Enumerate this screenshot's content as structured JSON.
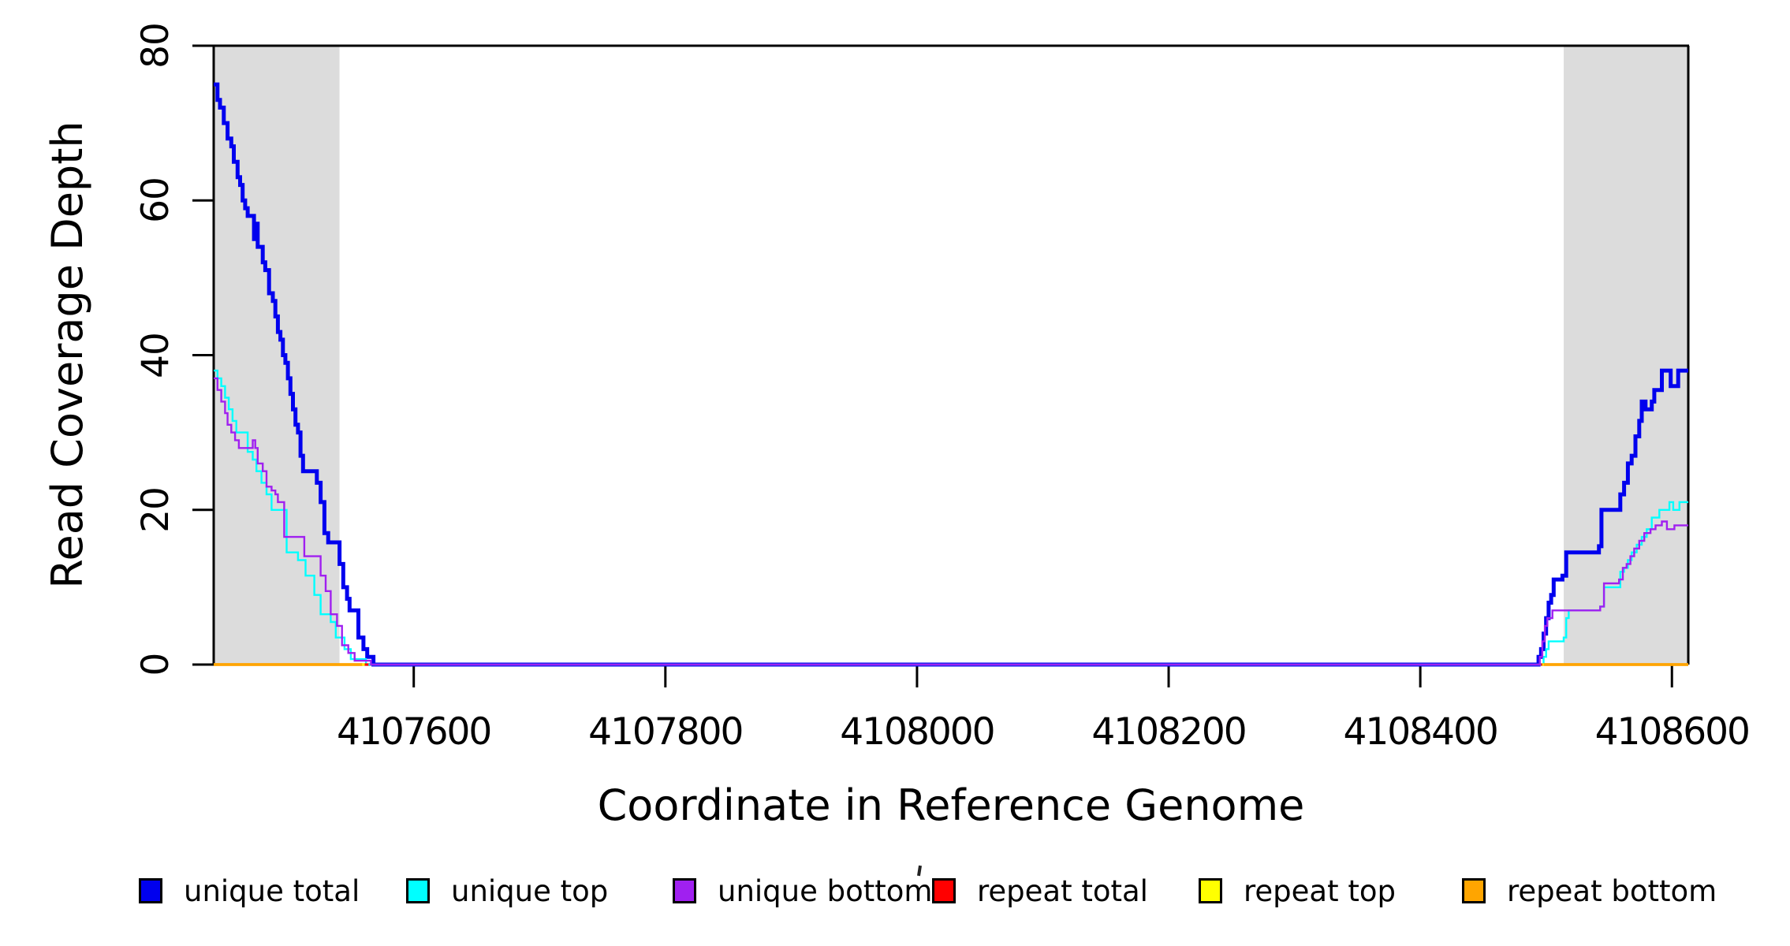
{
  "chart_data": {
    "type": "line",
    "style": "step-after",
    "title": "",
    "xlabel": "Coordinate in Reference Genome",
    "ylabel": "Read Coverage Depth",
    "xlim": [
      4107441,
      4108613
    ],
    "ylim": [
      0,
      80
    ],
    "grid": false,
    "background": "#ffffff",
    "axis_color": "#000000",
    "highlight_bands": [
      {
        "x0": 4107441,
        "x1": 4107541,
        "color": "#DCDCDC",
        "meaning": "repeat region (left)"
      },
      {
        "x0": 4108514,
        "x1": 4108613,
        "color": "#DCDCDC",
        "meaning": "repeat region (right)"
      }
    ],
    "x_ticks": [
      {
        "value": 4107600,
        "label": "4107600"
      },
      {
        "value": 4107800,
        "label": "4107800"
      },
      {
        "value": 4108000,
        "label": "4108000"
      },
      {
        "value": 4108200,
        "label": "4108200"
      },
      {
        "value": 4108400,
        "label": "4108400"
      },
      {
        "value": 4108600,
        "label": "4108600"
      }
    ],
    "y_ticks": [
      {
        "value": 0,
        "label": "0"
      },
      {
        "value": 20,
        "label": "20"
      },
      {
        "value": 40,
        "label": "40"
      },
      {
        "value": 60,
        "label": "60"
      },
      {
        "value": 80,
        "label": "80"
      }
    ],
    "series": [
      {
        "name": "unique total",
        "color": "#0000EE",
        "line_width": 5,
        "segments": [
          [
            [
              4107441,
              75
            ],
            [
              4107444,
              73
            ],
            [
              4107446,
              72
            ],
            [
              4107449,
              70
            ],
            [
              4107452,
              68
            ],
            [
              4107455,
              67
            ],
            [
              4107457,
              65
            ],
            [
              4107460,
              63
            ],
            [
              4107462,
              62
            ],
            [
              4107464,
              60
            ],
            [
              4107466,
              59
            ],
            [
              4107468,
              58
            ],
            [
              4107473,
              55
            ],
            [
              4107475,
              57
            ],
            [
              4107476,
              54
            ],
            [
              4107480,
              52
            ],
            [
              4107482,
              51
            ],
            [
              4107485,
              48
            ],
            [
              4107488,
              47
            ],
            [
              4107490,
              45
            ],
            [
              4107492,
              43
            ],
            [
              4107494,
              42
            ],
            [
              4107496,
              40
            ],
            [
              4107498,
              39
            ],
            [
              4107500,
              37
            ],
            [
              4107502,
              35
            ],
            [
              4107504,
              33
            ],
            [
              4107506,
              31
            ],
            [
              4107508,
              30
            ],
            [
              4107510,
              27
            ],
            [
              4107512,
              25
            ],
            [
              4107523,
              23.5
            ],
            [
              4107526,
              21
            ],
            [
              4107529,
              17
            ],
            [
              4107532,
              15.8
            ],
            [
              4107541,
              13
            ],
            [
              4107544,
              10
            ],
            [
              4107547,
              8.5
            ],
            [
              4107549,
              7
            ],
            [
              4107556,
              3.5
            ],
            [
              4107560,
              2
            ],
            [
              4107563,
              1
            ],
            [
              4107568,
              0
            ],
            [
              4108494,
              1
            ],
            [
              4108496,
              2
            ],
            [
              4108498,
              4
            ],
            [
              4108500,
              6
            ],
            [
              4108502,
              8
            ],
            [
              4108504,
              9
            ],
            [
              4108506,
              11
            ],
            [
              4108513,
              11.5
            ],
            [
              4108516,
              14.5
            ],
            [
              4108542,
              15.3
            ],
            [
              4108544,
              20
            ],
            [
              4108559,
              22
            ],
            [
              4108562,
              23.5
            ],
            [
              4108565,
              26
            ],
            [
              4108568,
              27
            ],
            [
              4108571,
              29.5
            ],
            [
              4108574,
              31.5
            ],
            [
              4108576,
              34
            ],
            [
              4108579,
              33
            ],
            [
              4108584,
              34
            ],
            [
              4108586,
              35.5
            ],
            [
              4108592,
              38
            ],
            [
              4108599,
              36
            ],
            [
              4108605,
              38
            ],
            [
              4108613,
              38
            ]
          ]
        ]
      },
      {
        "name": "unique top",
        "color": "#00FFFF",
        "line_width": 2.4,
        "segments": [
          [
            [
              4107441,
              38
            ],
            [
              4107444,
              37
            ],
            [
              4107447,
              36
            ],
            [
              4107450,
              34.5
            ],
            [
              4107453,
              33
            ],
            [
              4107456,
              31.5
            ],
            [
              4107459,
              30
            ],
            [
              4107468,
              27.5
            ],
            [
              4107472,
              26.5
            ],
            [
              4107475,
              25
            ],
            [
              4107479,
              23.5
            ],
            [
              4107483,
              22
            ],
            [
              4107487,
              20
            ],
            [
              4107499,
              14.5
            ],
            [
              4107508,
              13.5
            ],
            [
              4107514,
              11.5
            ],
            [
              4107521,
              9
            ],
            [
              4107526,
              6.5
            ],
            [
              4107534,
              5.5
            ],
            [
              4107538,
              3.5
            ],
            [
              4107545,
              2
            ],
            [
              4107550,
              0.7
            ],
            [
              4107562,
              0
            ],
            [
              4108498,
              1
            ],
            [
              4108500,
              2
            ],
            [
              4108502,
              3
            ],
            [
              4108514,
              3.5
            ],
            [
              4108516,
              6
            ],
            [
              4108518,
              7
            ],
            [
              4108543,
              7.5
            ],
            [
              4108546,
              10
            ],
            [
              4108559,
              12
            ],
            [
              4108562,
              12.5
            ],
            [
              4108565,
              13.5
            ],
            [
              4108568,
              14.5
            ],
            [
              4108572,
              15.5
            ],
            [
              4108576,
              16.5
            ],
            [
              4108580,
              17.5
            ],
            [
              4108584,
              19
            ],
            [
              4108590,
              20
            ],
            [
              4108598,
              21
            ],
            [
              4108601,
              20
            ],
            [
              4108606,
              21
            ],
            [
              4108613,
              21
            ]
          ]
        ]
      },
      {
        "name": "unique bottom",
        "color": "#A020F0",
        "line_width": 2.4,
        "segments": [
          [
            [
              4107441,
              37
            ],
            [
              4107444,
              35.5
            ],
            [
              4107447,
              34
            ],
            [
              4107450,
              32.5
            ],
            [
              4107452,
              31
            ],
            [
              4107455,
              30
            ],
            [
              4107458,
              29
            ],
            [
              4107461,
              28
            ],
            [
              4107472,
              29
            ],
            [
              4107474,
              28
            ],
            [
              4107476,
              26
            ],
            [
              4107480,
              25
            ],
            [
              4107483,
              23
            ],
            [
              4107487,
              22.5
            ],
            [
              4107490,
              22
            ],
            [
              4107492,
              21
            ],
            [
              4107497,
              16.5
            ],
            [
              4107513,
              14
            ],
            [
              4107526,
              11.5
            ],
            [
              4107530,
              9.5
            ],
            [
              4107534,
              6.5
            ],
            [
              4107539,
              5
            ],
            [
              4107543,
              2.5
            ],
            [
              4107548,
              1.5
            ],
            [
              4107553,
              0.5
            ],
            [
              4107566,
              0
            ],
            [
              4108495,
              1
            ],
            [
              4108497,
              3
            ],
            [
              4108499,
              5
            ],
            [
              4108501,
              6
            ],
            [
              4108505,
              7
            ],
            [
              4108543,
              7.5
            ],
            [
              4108546,
              10.5
            ],
            [
              4108558,
              11
            ],
            [
              4108561,
              12.5
            ],
            [
              4108564,
              13
            ],
            [
              4108567,
              14
            ],
            [
              4108570,
              15
            ],
            [
              4108574,
              16
            ],
            [
              4108578,
              17
            ],
            [
              4108583,
              17.5
            ],
            [
              4108587,
              18
            ],
            [
              4108592,
              18.5
            ],
            [
              4108596,
              17.5
            ],
            [
              4108602,
              18
            ],
            [
              4108613,
              18
            ]
          ]
        ]
      },
      {
        "name": "repeat total",
        "color": "#FF0000",
        "line_width": 3.2,
        "segments": [
          [
            [
              4107441,
              0
            ],
            [
              4107564,
              0
            ]
          ],
          [
            [
              4108496,
              0
            ],
            [
              4108613,
              0
            ]
          ]
        ]
      },
      {
        "name": "repeat top",
        "color": "#FFFF00",
        "line_width": 3.2,
        "segments": [
          [
            [
              4107441,
              0
            ],
            [
              4107561,
              0
            ]
          ],
          [
            [
              4108497,
              0
            ],
            [
              4108613,
              0
            ]
          ]
        ]
      },
      {
        "name": "repeat bottom",
        "color": "#FFA500",
        "line_width": 3.4,
        "segments": [
          [
            [
              4107441,
              0
            ],
            [
              4107559,
              0
            ]
          ],
          [
            [
              4108498,
              0
            ],
            [
              4108613,
              0
            ]
          ]
        ]
      }
    ],
    "legend": {
      "position": "bottom",
      "entries": [
        {
          "label": "unique total",
          "color": "#0000EE"
        },
        {
          "label": "unique top",
          "color": "#00FFFF"
        },
        {
          "label": "unique bottom",
          "color": "#A020F0"
        },
        {
          "label": "repeat total",
          "color": "#FF0000"
        },
        {
          "label": "repeat top",
          "color": "#FFFF00"
        },
        {
          "label": "repeat bottom",
          "color": "#FFA500"
        }
      ]
    }
  }
}
